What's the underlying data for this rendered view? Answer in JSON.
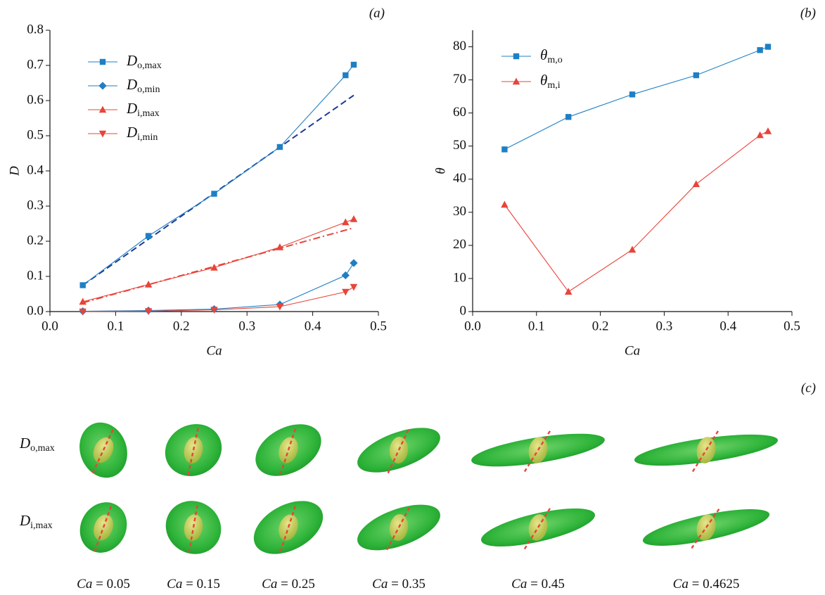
{
  "chart_data": [
    {
      "type": "line",
      "panel_label": "(a)",
      "xlabel": "Ca",
      "ylabel": "D",
      "x": [
        0.05,
        0.15,
        0.25,
        0.35,
        0.45,
        0.4625
      ],
      "xlim": [
        0,
        0.5
      ],
      "xticks": [
        {
          "value": 0,
          "label": "0.0"
        },
        0.1,
        0.2,
        0.3,
        0.4,
        0.5
      ],
      "ylim": [
        0,
        0.8
      ],
      "yticks": [
        {
          "value": 0,
          "label": "0.0"
        },
        0.1,
        0.2,
        0.3,
        0.4,
        0.5,
        0.6,
        0.7,
        0.8
      ],
      "series": [
        {
          "symbol": "D",
          "subscript": "o,max",
          "color": "#1f7fc4",
          "marker": "square",
          "values": [
            0.075,
            0.215,
            0.335,
            0.468,
            0.672,
            0.702
          ]
        },
        {
          "symbol": "D",
          "subscript": "o,min",
          "color": "#1f7fc4",
          "marker": "diamond",
          "values": [
            0.001,
            0.003,
            0.007,
            0.02,
            0.103,
            0.138
          ]
        },
        {
          "symbol": "D",
          "subscript": "i,max",
          "color": "#e8443a",
          "marker": "triangle-up",
          "values": [
            0.028,
            0.077,
            0.125,
            0.183,
            0.254,
            0.263
          ]
        },
        {
          "symbol": "D",
          "subscript": "i,min",
          "color": "#e8443a",
          "marker": "triangle-down",
          "values": [
            0.0,
            0.001,
            0.005,
            0.014,
            0.056,
            0.07
          ]
        }
      ],
      "fits": [
        {
          "color": "#1f3a93",
          "dash": "dashed",
          "x": [
            0.05,
            0.4625
          ],
          "values": [
            0.075,
            0.615
          ]
        },
        {
          "color": "#e8443a",
          "dash": "dash-dot",
          "x": [
            0.05,
            0.4625
          ],
          "values": [
            0.025,
            0.238
          ]
        }
      ]
    },
    {
      "type": "line",
      "panel_label": "(b)",
      "xlabel": "Ca",
      "ylabel": "θ",
      "x": [
        0.05,
        0.15,
        0.25,
        0.35,
        0.45,
        0.4625
      ],
      "xlim": [
        0,
        0.5
      ],
      "xticks": [
        {
          "value": 0,
          "label": "0.0"
        },
        0.1,
        0.2,
        0.3,
        0.4,
        0.5
      ],
      "ylim": [
        0,
        85
      ],
      "yticks": [
        0,
        10,
        20,
        30,
        40,
        50,
        60,
        70,
        80
      ],
      "series": [
        {
          "symbol": "θ",
          "subscript": "m,o",
          "color": "#1f7fc4",
          "marker": "square",
          "values": [
            49,
            58.8,
            65.6,
            71.4,
            79,
            80
          ]
        },
        {
          "symbol": "θ",
          "subscript": "m,i",
          "color": "#e8443a",
          "marker": "triangle-up",
          "values": [
            32.3,
            6,
            18.7,
            38.5,
            53.3,
            54.5
          ]
        }
      ],
      "fits": []
    }
  ],
  "panel_c": {
    "panel_label": "(c)",
    "rows": [
      {
        "symbol": "D",
        "subscript": "o,max"
      },
      {
        "symbol": "D",
        "subscript": "i,max"
      }
    ],
    "caption_symbol": "Ca",
    "caption_equals": "=",
    "captions": [
      "0.05",
      "0.15",
      "0.25",
      "0.35",
      "0.45",
      "0.4625"
    ]
  }
}
